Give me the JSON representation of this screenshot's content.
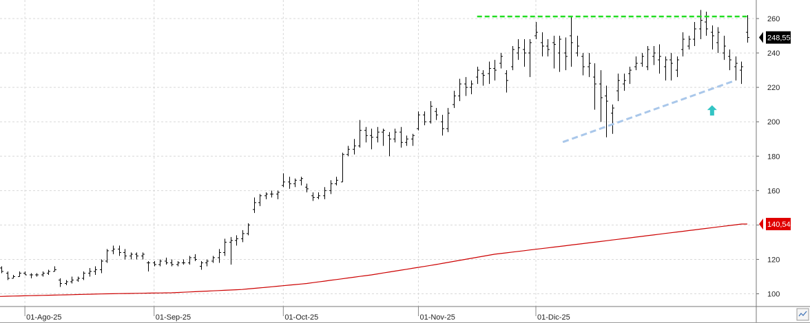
{
  "chart_data": {
    "type": "ohlc",
    "title": "",
    "xlabel": "",
    "ylabel": "",
    "ylim": [
      95,
      268
    ],
    "y_ticks": [
      100,
      120,
      140,
      160,
      180,
      200,
      220,
      240,
      260
    ],
    "x_ticks": [
      {
        "label": "01-Ago-25",
        "index": 4
      },
      {
        "label": "01-Sep-25",
        "index": 26
      },
      {
        "label": "01-Oct-25",
        "index": 48
      },
      {
        "label": "01-Nov-25",
        "index": 71
      },
      {
        "label": "01-Dic-25",
        "index": 91
      }
    ],
    "grid": true,
    "last_price_label": "248,55",
    "ma_label": "140,54",
    "colors": {
      "bars": "#000000",
      "moving_average": "#cc0000",
      "resistance": "#22dd22",
      "support": "#a9c7ea",
      "arrow": "#33c4c4",
      "grid": "#d8d8d8",
      "last_price_box": "#000000",
      "ma_box": "#e00000"
    },
    "series": [
      {
        "type": "ohlc",
        "bars": [
          [
            115,
            116,
            112,
            113
          ],
          [
            112,
            113,
            108,
            109
          ],
          [
            109,
            111,
            109,
            110
          ],
          [
            110,
            113,
            110,
            112
          ],
          [
            112,
            113,
            111,
            111
          ],
          [
            111,
            112,
            109,
            111
          ],
          [
            111,
            112,
            110,
            111
          ],
          [
            111,
            113,
            110,
            112
          ],
          [
            112,
            114,
            111,
            113
          ],
          [
            113,
            116,
            113,
            114
          ],
          [
            108,
            109,
            104,
            106
          ],
          [
            106,
            108,
            105,
            107
          ],
          [
            107,
            110,
            106,
            108
          ],
          [
            108,
            110,
            107,
            109
          ],
          [
            109,
            113,
            108,
            112
          ],
          [
            112,
            115,
            110,
            113
          ],
          [
            113,
            116,
            111,
            114
          ],
          [
            114,
            120,
            112,
            119
          ],
          [
            119,
            126,
            118,
            125
          ],
          [
            125,
            128,
            123,
            126
          ],
          [
            126,
            128,
            122,
            124
          ],
          [
            124,
            126,
            120,
            122
          ],
          [
            122,
            124,
            120,
            123
          ],
          [
            123,
            124,
            120,
            122
          ],
          [
            122,
            124,
            120,
            123
          ],
          [
            118,
            119,
            113,
            118
          ],
          [
            118,
            119,
            116,
            117
          ],
          [
            117,
            120,
            116,
            119
          ],
          [
            119,
            121,
            117,
            118
          ],
          [
            118,
            120,
            116,
            117
          ],
          [
            117,
            119,
            116,
            118
          ],
          [
            118,
            120,
            117,
            118
          ],
          [
            118,
            122,
            117,
            121
          ],
          [
            121,
            123,
            119,
            120
          ],
          [
            116,
            119,
            114,
            118
          ],
          [
            118,
            120,
            116,
            119
          ],
          [
            119,
            122,
            118,
            121
          ],
          [
            121,
            126,
            118,
            124
          ],
          [
            124,
            132,
            122,
            130
          ],
          [
            130,
            133,
            117,
            131
          ],
          [
            131,
            134,
            128,
            132
          ],
          [
            132,
            137,
            130,
            135
          ],
          [
            135,
            141,
            134,
            140
          ],
          [
            149,
            156,
            147,
            153
          ],
          [
            153,
            158,
            151,
            157
          ],
          [
            157,
            159,
            155,
            158
          ],
          [
            158,
            160,
            156,
            158
          ],
          [
            158,
            160,
            155,
            159
          ],
          [
            163,
            170,
            162,
            165
          ],
          [
            165,
            168,
            161,
            164
          ],
          [
            164,
            167,
            162,
            166
          ],
          [
            166,
            168,
            163,
            167
          ],
          [
            162,
            164,
            159,
            161
          ],
          [
            157,
            159,
            154,
            156
          ],
          [
            156,
            159,
            155,
            157
          ],
          [
            157,
            162,
            155,
            160
          ],
          [
            160,
            166,
            158,
            164
          ],
          [
            164,
            168,
            163,
            166
          ],
          [
            165,
            182,
            165,
            181
          ],
          [
            181,
            186,
            180,
            184
          ],
          [
            184,
            190,
            181,
            186
          ],
          [
            186,
            201,
            185,
            195
          ],
          [
            195,
            197,
            188,
            192
          ],
          [
            192,
            196,
            184,
            191
          ],
          [
            191,
            197,
            188,
            194
          ],
          [
            194,
            196,
            186,
            195
          ],
          [
            192,
            194,
            180,
            190
          ],
          [
            190,
            196,
            188,
            194
          ],
          [
            194,
            197,
            185,
            188
          ],
          [
            188,
            192,
            186,
            190
          ],
          [
            190,
            193,
            186,
            192
          ],
          [
            196,
            206,
            195,
            204
          ],
          [
            204,
            206,
            198,
            200
          ],
          [
            200,
            212,
            199,
            209
          ],
          [
            206,
            208,
            201,
            204
          ],
          [
            200,
            204,
            192,
            196
          ],
          [
            196,
            208,
            194,
            205
          ],
          [
            210,
            218,
            208,
            215
          ],
          [
            215,
            225,
            212,
            222
          ],
          [
            222,
            226,
            215,
            220
          ],
          [
            220,
            224,
            216,
            222
          ],
          [
            226,
            232,
            222,
            230
          ],
          [
            228,
            230,
            221,
            227
          ],
          [
            228,
            235,
            222,
            231
          ],
          [
            231,
            236,
            224,
            230
          ],
          [
            234,
            240,
            231,
            238
          ],
          [
            228,
            230,
            217,
            224
          ],
          [
            232,
            244,
            230,
            242
          ],
          [
            240,
            248,
            236,
            243
          ],
          [
            242,
            248,
            232,
            240
          ],
          [
            240,
            248,
            226,
            246
          ],
          [
            250,
            258,
            248,
            252
          ],
          [
            246,
            252,
            238,
            244
          ],
          [
            244,
            248,
            238,
            242
          ],
          [
            246,
            250,
            231,
            245
          ],
          [
            240,
            250,
            229,
            248
          ],
          [
            240,
            249,
            230,
            238
          ],
          [
            250,
            261,
            232,
            246
          ],
          [
            240,
            250,
            238,
            244
          ],
          [
            238,
            240,
            227,
            232
          ],
          [
            232,
            240,
            226,
            234
          ],
          [
            226,
            234,
            207,
            222
          ],
          [
            222,
            230,
            200,
            214
          ],
          [
            215,
            221,
            191,
            212
          ],
          [
            205,
            210,
            193,
            208
          ],
          [
            218,
            228,
            212,
            224
          ],
          [
            222,
            228,
            218,
            224
          ],
          [
            228,
            232,
            222,
            230
          ],
          [
            232,
            238,
            230,
            234
          ],
          [
            234,
            240,
            232,
            238
          ],
          [
            232,
            244,
            230,
            242
          ],
          [
            238,
            244,
            233,
            240
          ],
          [
            236,
            245,
            228,
            238
          ],
          [
            232,
            238,
            224,
            236
          ],
          [
            236,
            240,
            224,
            234
          ],
          [
            230,
            238,
            226,
            236
          ],
          [
            242,
            252,
            238,
            248
          ],
          [
            244,
            250,
            242,
            248
          ],
          [
            248,
            258,
            244,
            254
          ],
          [
            254,
            265,
            248,
            259
          ],
          [
            258,
            264,
            250,
            254
          ],
          [
            252,
            256,
            242,
            250
          ],
          [
            246,
            255,
            240,
            252
          ],
          [
            240,
            250,
            236,
            244
          ],
          [
            238,
            242,
            230,
            236
          ],
          [
            232,
            238,
            224,
            234
          ],
          [
            230,
            235,
            222,
            232
          ],
          [
            252,
            262,
            246,
            249
          ]
        ]
      },
      {
        "type": "line",
        "values": [
          98.5,
          100.0,
          100.6,
          102.5,
          106.0,
          111.0,
          117.0,
          123.0,
          130.0,
          140.54
        ],
        "value_index": [
          0,
          18,
          29,
          41,
          52,
          63,
          74,
          84,
          101,
          126
        ]
      }
    ],
    "annotations": [
      {
        "type": "hline-dashed",
        "y": 261.2,
        "from_index": 81,
        "to_index": 126
      },
      {
        "type": "trendline-dashed",
        "from": [
          97,
          189
        ],
        "to": [
          124,
          224
        ]
      },
      {
        "type": "arrow-up",
        "index": 121,
        "y": 206
      }
    ]
  }
}
